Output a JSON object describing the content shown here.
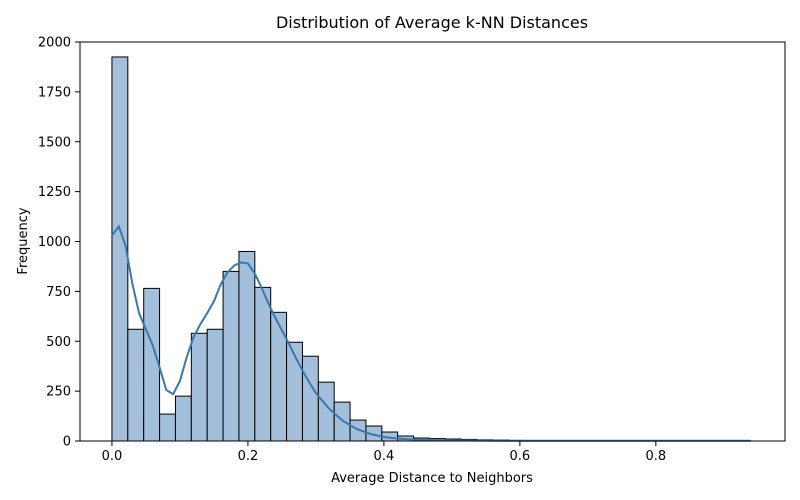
{
  "chart_data": {
    "type": "bar",
    "title": "Distribution of Average k-NN Distances",
    "xlabel": "Average Distance to Neighbors",
    "ylabel": "Frequency",
    "xlim": [
      -0.047,
      0.99
    ],
    "ylim": [
      0,
      2000
    ],
    "x_ticks": [
      0.0,
      0.2,
      0.4,
      0.6,
      0.8
    ],
    "x_tick_labels": [
      "0.0",
      "0.2",
      "0.4",
      "0.6",
      "0.8"
    ],
    "y_ticks": [
      0,
      250,
      500,
      750,
      1000,
      1250,
      1500,
      1750,
      2000
    ],
    "y_tick_labels": [
      "0",
      "250",
      "500",
      "750",
      "1000",
      "1250",
      "1500",
      "1750",
      "2000"
    ],
    "bin_width": 0.02335,
    "bin_start": 0.0,
    "values": [
      1925,
      560,
      765,
      135,
      225,
      540,
      560,
      850,
      950,
      770,
      645,
      495,
      425,
      295,
      195,
      105,
      75,
      45,
      25,
      15,
      12,
      10,
      8,
      6,
      5,
      3,
      2,
      2,
      2,
      1,
      1,
      1,
      1,
      1,
      1,
      1,
      1,
      1,
      1,
      1
    ],
    "kde": {
      "x": [
        0.0,
        0.01,
        0.02,
        0.03,
        0.04,
        0.05,
        0.06,
        0.07,
        0.08,
        0.09,
        0.1,
        0.11,
        0.12,
        0.13,
        0.14,
        0.15,
        0.16,
        0.17,
        0.18,
        0.19,
        0.2,
        0.21,
        0.22,
        0.23,
        0.24,
        0.25,
        0.26,
        0.27,
        0.28,
        0.29,
        0.3,
        0.32,
        0.34,
        0.36,
        0.38,
        0.4,
        0.42,
        0.45,
        0.5,
        0.55,
        0.6,
        0.7,
        0.8,
        0.94
      ],
      "y": [
        1030,
        1075,
        980,
        790,
        640,
        560,
        480,
        370,
        255,
        235,
        300,
        420,
        520,
        585,
        640,
        700,
        785,
        845,
        880,
        895,
        890,
        840,
        770,
        690,
        620,
        555,
        490,
        420,
        355,
        295,
        240,
        160,
        100,
        60,
        35,
        20,
        12,
        6,
        3,
        2,
        1,
        1,
        1,
        1
      ]
    },
    "grid": false,
    "bar_color": "#a3bfd9",
    "line_color": "#3a78b0"
  }
}
